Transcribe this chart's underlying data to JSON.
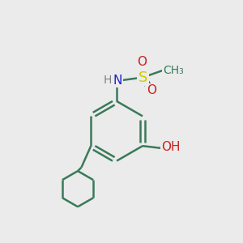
{
  "bg_color": "#ebebeb",
  "bond_color": "#3a7a5a",
  "bond_width": 1.8,
  "atom_colors": {
    "N": "#2020cc",
    "O": "#cc2020",
    "S": "#cccc00",
    "H": "#808080",
    "C": "#3a7a5a"
  },
  "fig_size": [
    3.0,
    3.0
  ],
  "dpi": 100
}
